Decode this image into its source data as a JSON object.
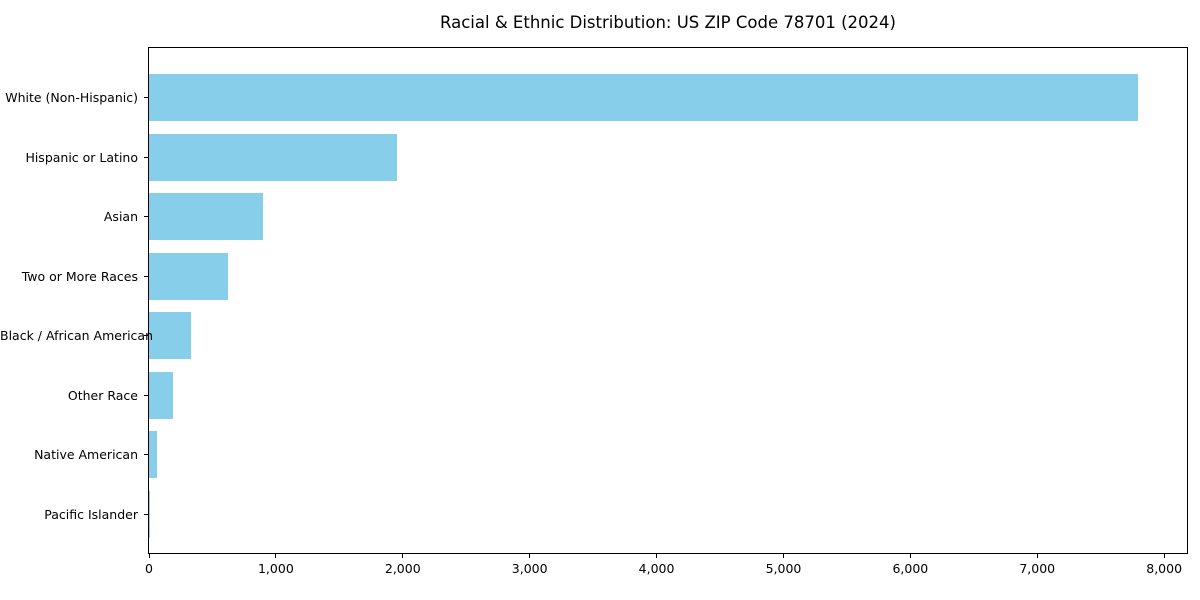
{
  "figure": {
    "background_color": "#ffffff",
    "text_color": "#000000"
  },
  "chart_data": {
    "type": "bar",
    "orientation": "horizontal",
    "title": "Racial & Ethnic Distribution: US ZIP Code 78701 (2024)",
    "xlabel": "",
    "ylabel": "",
    "categories": [
      "White (Non-Hispanic)",
      "Hispanic or Latino",
      "Asian",
      "Two or More Races",
      "Black / African American",
      "Other Race",
      "Native American",
      "Pacific Islander"
    ],
    "values": [
      7790,
      1955,
      900,
      625,
      330,
      190,
      60,
      5
    ],
    "bar_color": "#87CEEB",
    "xlim": [
      0,
      8180
    ],
    "xticks": [
      0,
      1000,
      2000,
      3000,
      4000,
      5000,
      6000,
      7000,
      8000
    ],
    "xticklabels": [
      "0",
      "1,000",
      "2,000",
      "3,000",
      "4,000",
      "5,000",
      "6,000",
      "7,000",
      "8,000"
    ],
    "grid": false,
    "legend": null,
    "plot_frame": "full-box"
  }
}
